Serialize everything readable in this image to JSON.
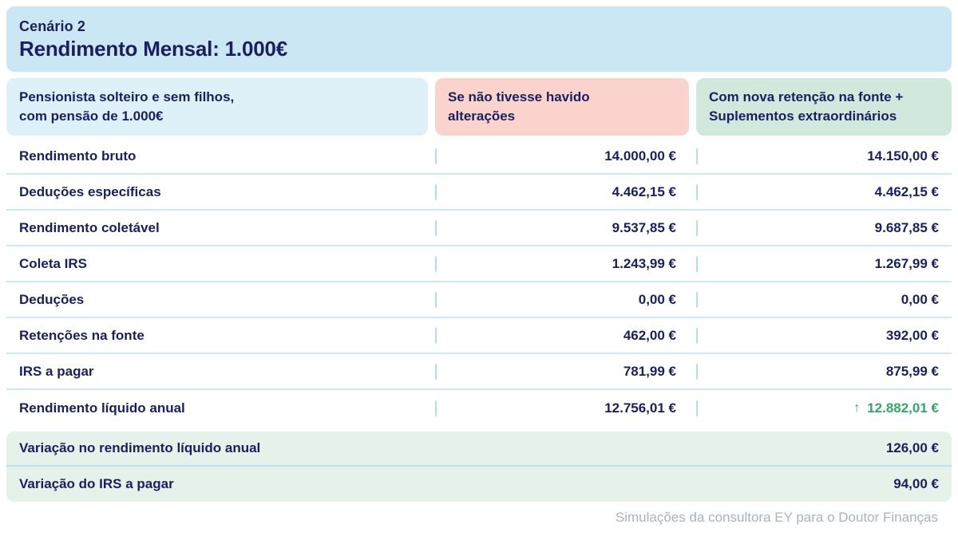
{
  "header": {
    "scenario": "Cenário 2",
    "title": "Rendimento Mensal: 1.000€"
  },
  "columns": {
    "profile": "Pensionista solteiro e sem filhos,\ncom pensão de 1.000€",
    "before": "Se não tivesse havido\nalterações",
    "after": "Com nova retenção na fonte +\nSuplementos extraordinários"
  },
  "rows": [
    {
      "label": "Rendimento bruto",
      "before": "14.000,00 €",
      "after": "14.150,00 €"
    },
    {
      "label": "Deduções específicas",
      "before": "4.462,15 €",
      "after": "4.462,15 €"
    },
    {
      "label": "Rendimento coletável",
      "before": "9.537,85 €",
      "after": "9.687,85 €"
    },
    {
      "label": "Coleta IRS",
      "before": "1.243,99 €",
      "after": "1.267,99 €"
    },
    {
      "label": "Deduções",
      "before": "0,00 €",
      "after": "0,00 €"
    },
    {
      "label": "Retenções na fonte",
      "before": "462,00 €",
      "after": "392,00 €"
    },
    {
      "label": "IRS a pagar",
      "before": "781,99 €",
      "after": "875,99 €"
    },
    {
      "label": "Rendimento líquido anual",
      "before": "12.756,01 €",
      "after": "12.882,01 €",
      "after_arrow": "↑"
    }
  ],
  "summary": [
    {
      "label": "Variação no rendimento líquido anual",
      "value": "126,00 €"
    },
    {
      "label": "Variação do IRS a pagar",
      "value": "94,00 €"
    }
  ],
  "footer": "Simulações da consultora EY para o Doutor Finanças",
  "colors": {
    "navy": "#1a1f5f",
    "header_bg": "#cbe7f3",
    "col1_bg": "#dff1f8",
    "col2_bg": "#fad3cd",
    "col3_bg": "#d1e8dc",
    "summary_bg": "#e4f2ea",
    "divider": "#cdeaf3",
    "summary_divider": "#c2e0e9",
    "tick": "#b5deeb",
    "highlight_green": "#2fa963",
    "footer_gray": "#a9b3bc"
  }
}
